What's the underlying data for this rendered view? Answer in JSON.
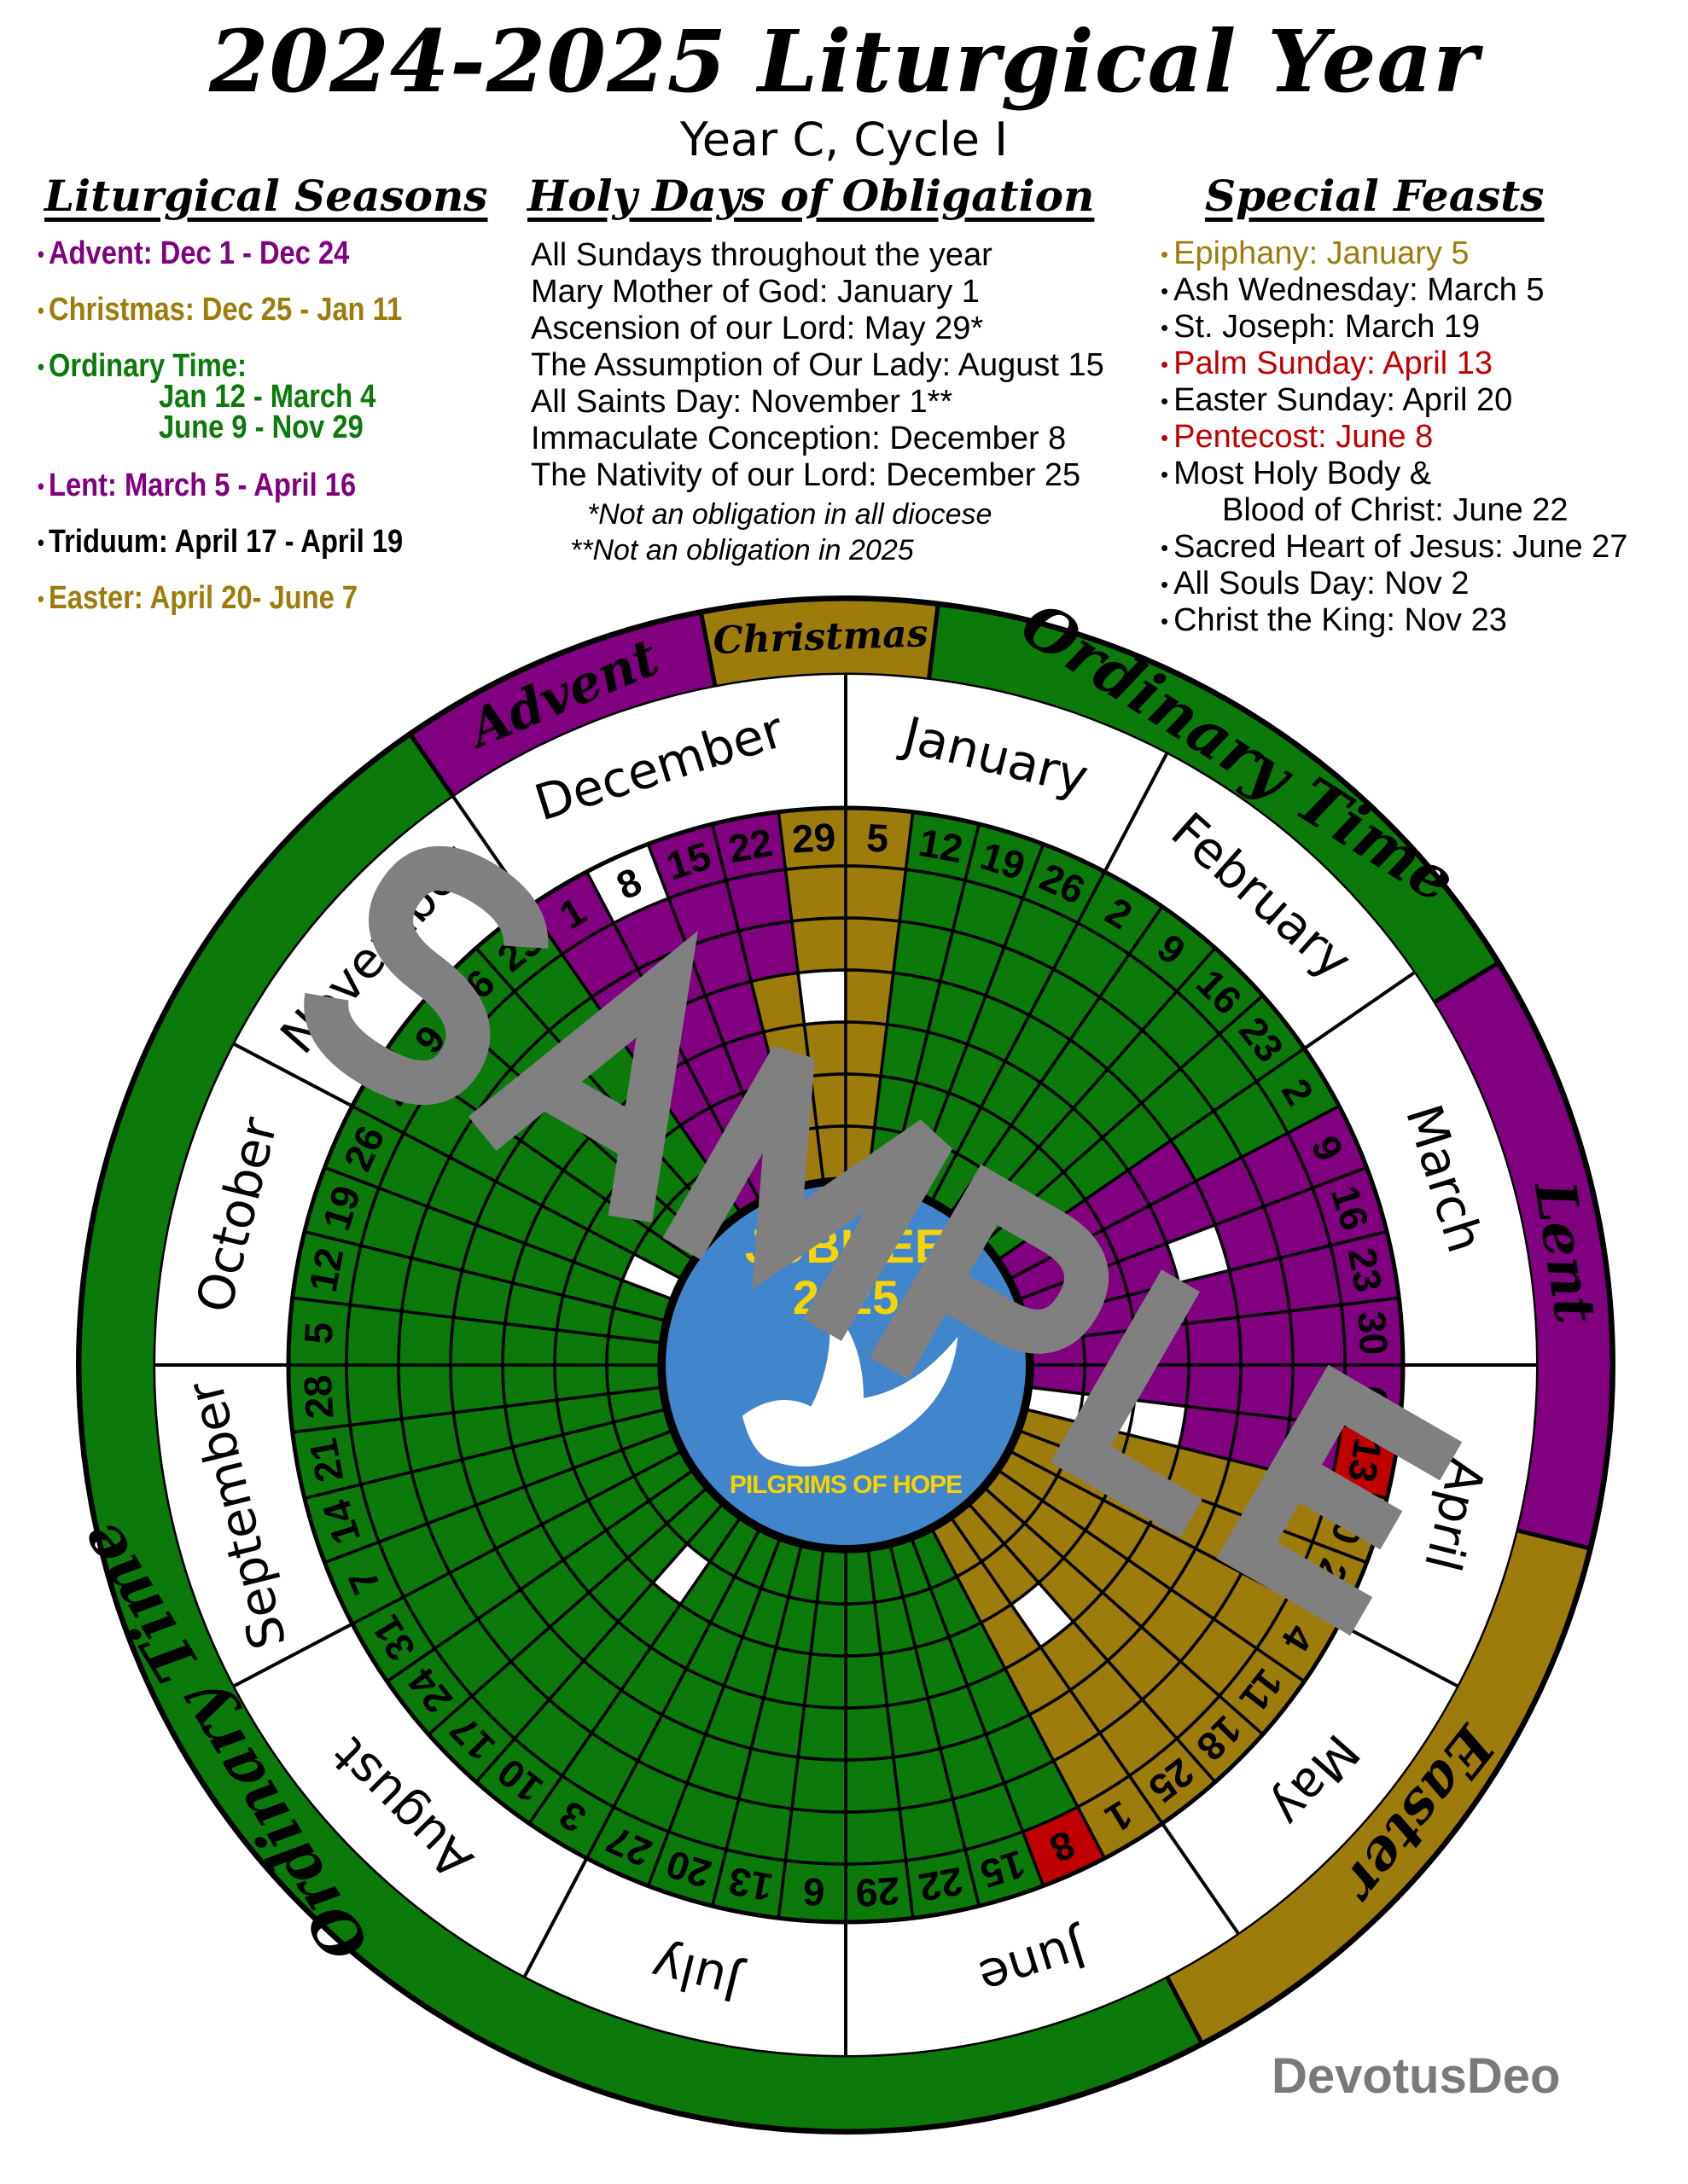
{
  "header": {
    "title": "2024-2025 Liturgical Year",
    "subtitle": "Year C, Cycle I"
  },
  "columns": {
    "seasons": {
      "heading": "Liturgical Seasons",
      "items": [
        {
          "label": "Advent: Dec 1 - Dec 24",
          "color": "#800080"
        },
        {
          "label": "Christmas: Dec 25 - Jan 11",
          "color": "#9e7c0c"
        },
        {
          "label": "Ordinary Time:",
          "color": "#0b7a0b"
        },
        {
          "label": "Jan 12 - March 4",
          "color": "#0b7a0b"
        },
        {
          "label": "June 9 - Nov 29",
          "color": "#0b7a0b"
        },
        {
          "label": "Lent: March 5 - April 16",
          "color": "#800080"
        },
        {
          "label": "Triduum: April 17 - April 19",
          "color": "#000000"
        },
        {
          "label": "Easter: April 20- June 7",
          "color": "#9e7c0c"
        }
      ]
    },
    "holy_days": {
      "heading": "Holy Days of Obligation",
      "items": [
        "All Sundays throughout the year",
        "Mary Mother of God: January 1",
        "Ascension of our Lord: May 29*",
        "The Assumption of Our Lady: August 15",
        "All Saints Day: November 1**",
        "Immaculate Conception: December 8",
        "The Nativity of our Lord: December 25"
      ],
      "notes": [
        "*Not an obligation in all diocese",
        "**Not an obligation in 2025"
      ]
    },
    "feasts": {
      "heading": "Special Feasts",
      "items": [
        {
          "label": "Epiphany: January 5",
          "color": "#9e7c0c"
        },
        {
          "label": "Ash Wednesday: March 5",
          "color": "#000000"
        },
        {
          "label": "St. Joseph: March 19",
          "color": "#000000"
        },
        {
          "label": "Palm Sunday: April 13",
          "color": "#c00000"
        },
        {
          "label": "Easter Sunday: April 20",
          "color": "#000000"
        },
        {
          "label": "Pentecost: June 8",
          "color": "#c00000"
        },
        {
          "label": "Most Holy Body &",
          "color": "#000000"
        },
        {
          "label": "Blood of Christ: June 22",
          "color": "#000000"
        },
        {
          "label": "Sacred Heart of Jesus: June 27",
          "color": "#000000"
        },
        {
          "label": "All Souls Day: Nov 2",
          "color": "#000000"
        },
        {
          "label": "Christ the King: Nov 23",
          "color": "#000000"
        }
      ]
    }
  },
  "colors": {
    "purple": "#800080",
    "gold": "#9e7c0c",
    "green": "#0b7a0b",
    "red": "#c00000",
    "white": "#ffffff",
    "logo_blue": "#4185cc",
    "logo_yellow": "#f7d300",
    "watermark": "#808080"
  },
  "wheel": {
    "season_bands": [
      {
        "label": "Advent",
        "start": "2024-12-01",
        "end": "2024-12-24",
        "color": "purple"
      },
      {
        "label": "Christmas",
        "start": "2024-12-25",
        "end": "2025-01-11",
        "color": "gold"
      },
      {
        "label": "Ordinary Time",
        "start": "2025-01-12",
        "end": "2025-03-04",
        "color": "green"
      },
      {
        "label": "Lent",
        "start": "2025-03-05",
        "end": "2025-04-19",
        "color": "purple"
      },
      {
        "label": "Easter",
        "start": "2025-04-20",
        "end": "2025-06-07",
        "color": "gold"
      },
      {
        "label": "Ordinary Time",
        "start": "2025-06-08",
        "end": "2025-11-29",
        "color": "green"
      }
    ],
    "months": [
      {
        "name": "December",
        "sundays": [
          1,
          8,
          15,
          22,
          29
        ]
      },
      {
        "name": "January",
        "sundays": [
          5,
          12,
          19,
          26
        ]
      },
      {
        "name": "February",
        "sundays": [
          2,
          9,
          16,
          23
        ]
      },
      {
        "name": "March",
        "sundays": [
          2,
          9,
          16,
          23,
          30
        ]
      },
      {
        "name": "April",
        "sundays": [
          6,
          13,
          20,
          27
        ]
      },
      {
        "name": "May",
        "sundays": [
          4,
          11,
          18,
          25
        ]
      },
      {
        "name": "June",
        "sundays": [
          1,
          8,
          15,
          22,
          29
        ]
      },
      {
        "name": "July",
        "sundays": [
          6,
          13,
          20,
          27
        ]
      },
      {
        "name": "August",
        "sundays": [
          3,
          10,
          17,
          24,
          31
        ]
      },
      {
        "name": "September",
        "sundays": [
          7,
          14,
          21,
          28
        ]
      },
      {
        "name": "October",
        "sundays": [
          5,
          12,
          19,
          26
        ]
      },
      {
        "name": "November",
        "sundays": [
          2,
          9,
          16,
          23
        ]
      }
    ],
    "red_days": [
      "2025-04-13",
      "2025-06-08"
    ],
    "white_days": [
      "2024-12-08",
      "2025-01-01",
      "2025-03-19",
      "2025-04-17",
      "2025-04-18",
      "2025-04-19",
      "2025-05-29",
      "2025-08-15",
      "2025-11-01"
    ]
  },
  "logo": {
    "line1": "JUBILEE",
    "line2": "2025",
    "line3": "PILGRIMS OF HOPE"
  },
  "watermark": "SAMPLE",
  "credit": "DevotusDeo"
}
